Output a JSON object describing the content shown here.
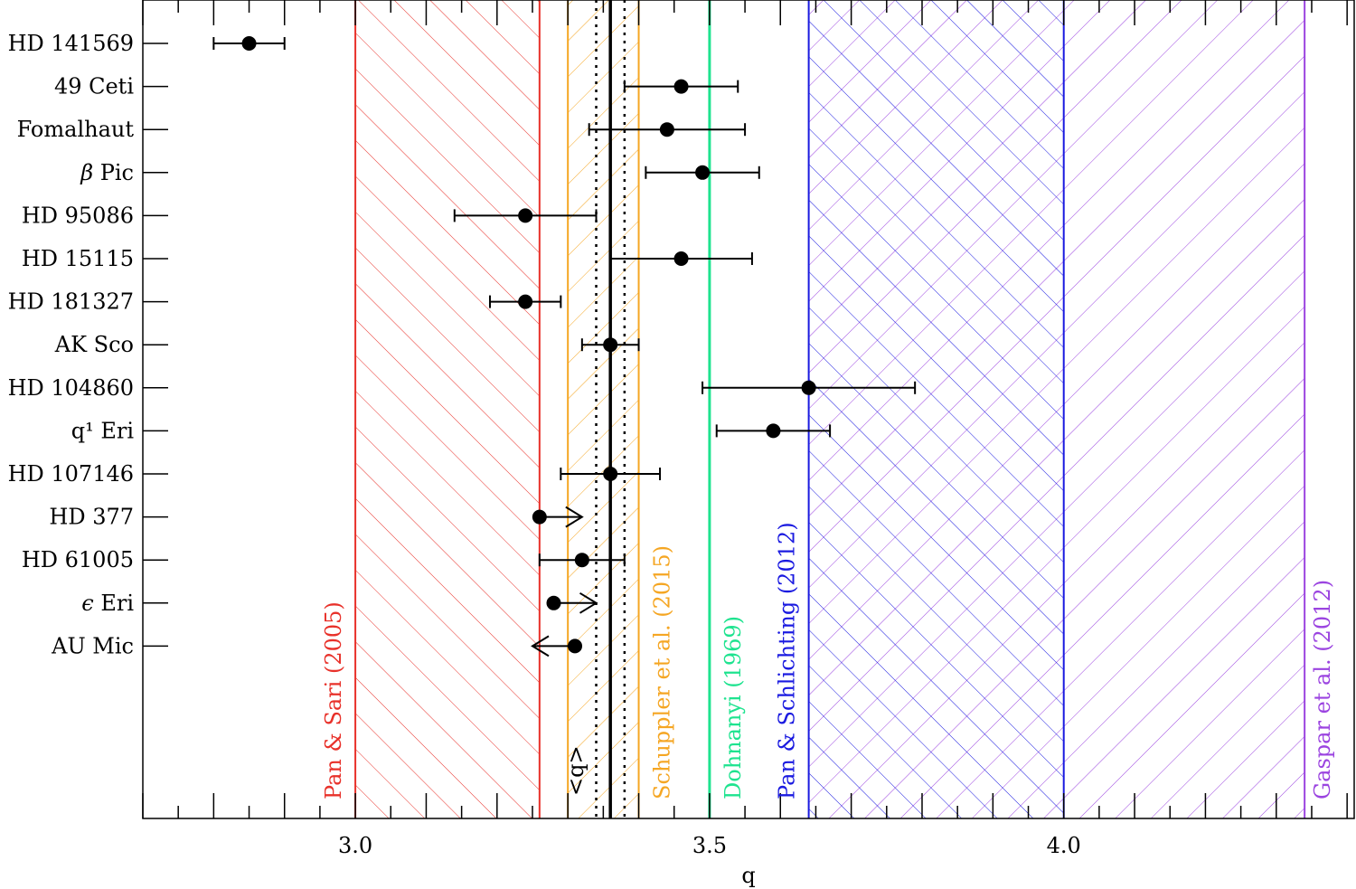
{
  "chart_data": {
    "type": "scatter",
    "title": "",
    "xlabel": "q",
    "ylabel": "",
    "xlim": [
      2.7,
      4.41
    ],
    "grid": false,
    "xticks": [
      {
        "value": 3.0,
        "label": "3.0"
      },
      {
        "value": 3.5,
        "label": "3.5"
      },
      {
        "value": 4.0,
        "label": "4.0"
      }
    ],
    "minor_tick_step": 0.05,
    "mean_q": {
      "value": 3.36,
      "lo": 3.34,
      "hi": 3.38,
      "label": "<q>"
    },
    "stars": [
      {
        "name": "HD 141569",
        "q": 2.85,
        "err_lo": 0.05,
        "err_hi": 0.05
      },
      {
        "name": "49 Ceti",
        "q": 3.46,
        "err_lo": 0.08,
        "err_hi": 0.08
      },
      {
        "name": "Fomalhaut",
        "q": 3.44,
        "err_lo": 0.11,
        "err_hi": 0.11
      },
      {
        "name": "Pic",
        "prefix": "β",
        "q": 3.49,
        "err_lo": 0.08,
        "err_hi": 0.08
      },
      {
        "name": "HD 95086",
        "q": 3.24,
        "err_lo": 0.1,
        "err_hi": 0.1
      },
      {
        "name": "HD 15115",
        "q": 3.46,
        "err_lo": 0.1,
        "err_hi": 0.1
      },
      {
        "name": "HD 181327",
        "q": 3.24,
        "err_lo": 0.05,
        "err_hi": 0.05
      },
      {
        "name": "AK Sco",
        "q": 3.36,
        "err_lo": 0.04,
        "err_hi": 0.04
      },
      {
        "name": "HD 104860",
        "q": 3.64,
        "err_lo": 0.15,
        "err_hi": 0.15
      },
      {
        "name": "q¹ Eri",
        "q": 3.59,
        "err_lo": 0.08,
        "err_hi": 0.08
      },
      {
        "name": "HD 107146",
        "q": 3.36,
        "err_lo": 0.07,
        "err_hi": 0.07
      },
      {
        "name": "HD 377",
        "q": 3.26,
        "limit": "lower"
      },
      {
        "name": "HD 61005",
        "q": 3.32,
        "err_lo": 0.06,
        "err_hi": 0.06
      },
      {
        "name": "Eri",
        "prefix": "ϵ",
        "q": 3.28,
        "limit": "lower"
      },
      {
        "name": "AU Mic",
        "q": 3.31,
        "limit": "upper"
      }
    ],
    "bands": [
      {
        "name": "pan-sari",
        "label": "Pan & Sari (2005)",
        "q_min": 3.0,
        "q_max": 3.26,
        "color": "#e8312a",
        "hatch": "backslash"
      },
      {
        "name": "schuppler",
        "label": "Schuppler et al. (2015)",
        "q_min": 3.3,
        "q_max": 3.4,
        "color": "#f5a623",
        "hatch": "slash"
      },
      {
        "name": "dohnanyi",
        "label": "Dohnanyi (1969)",
        "q": 3.5,
        "color": "#1ee38f",
        "hatch": "none"
      },
      {
        "name": "pan-schlichting",
        "label": "Pan & Schlichting (2012)",
        "q_min": 3.64,
        "q_max": 4.0,
        "color": "#1a1ae0",
        "hatch": "cross"
      },
      {
        "name": "gaspar",
        "label": "Gaspar et al. (2012)",
        "q_min": 3.64,
        "q_max": 4.34,
        "color": "#9b44e0",
        "hatch": "slash"
      }
    ]
  }
}
